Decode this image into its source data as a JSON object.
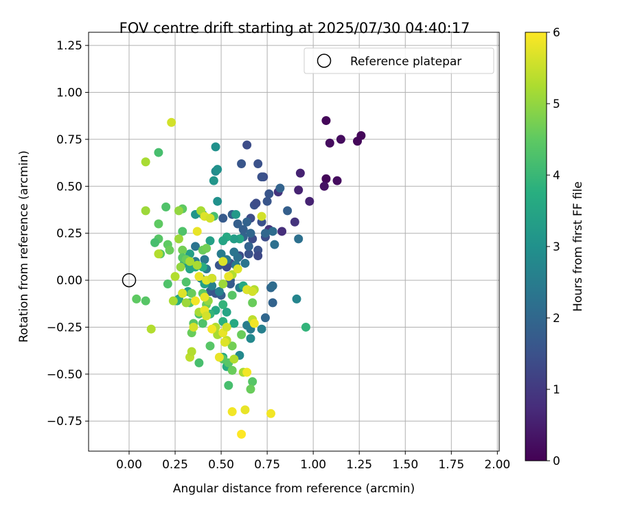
{
  "chart_data": {
    "type": "scatter",
    "title": "FOV centre drift starting at 2025/07/30 04:40:17",
    "xlabel": "Angular distance from reference (arcmin)",
    "ylabel": "Rotation from reference (arcmin)",
    "xlim": [
      -0.22,
      2.01
    ],
    "ylim": [
      -0.91,
      1.32
    ],
    "xticks": [
      "0.00",
      "0.25",
      "0.50",
      "0.75",
      "1.00",
      "1.25",
      "1.50",
      "1.75",
      "2.00"
    ],
    "yticks": [
      "−0.75",
      "−0.50",
      "−0.25",
      "0.00",
      "0.25",
      "0.50",
      "0.75",
      "1.00",
      "1.25"
    ],
    "grid": true,
    "legend": {
      "location": "top-right",
      "label": "Reference platepar"
    },
    "reference_point": [
      0.0,
      0.0
    ],
    "colorbar": {
      "label": "Hours from first FF file",
      "range": [
        0,
        6
      ],
      "ticks": [
        "0",
        "1",
        "2",
        "3",
        "4",
        "5",
        "6"
      ],
      "colormap": "viridis"
    },
    "points": [
      {
        "x": 1.07,
        "y": 0.85,
        "t": 0.1
      },
      {
        "x": 1.26,
        "y": 0.77,
        "t": 0.1
      },
      {
        "x": 1.24,
        "y": 0.74,
        "t": 0.1
      },
      {
        "x": 1.15,
        "y": 0.75,
        "t": 0.2
      },
      {
        "x": 1.09,
        "y": 0.73,
        "t": 0.2
      },
      {
        "x": 1.07,
        "y": 0.54,
        "t": 0.1
      },
      {
        "x": 1.13,
        "y": 0.53,
        "t": 0.2
      },
      {
        "x": 1.06,
        "y": 0.5,
        "t": 0.3
      },
      {
        "x": 0.93,
        "y": 0.57,
        "t": 0.6
      },
      {
        "x": 0.92,
        "y": 0.48,
        "t": 0.6
      },
      {
        "x": 0.98,
        "y": 0.42,
        "t": 0.6
      },
      {
        "x": 0.81,
        "y": 0.47,
        "t": 0.9
      },
      {
        "x": 0.9,
        "y": 0.31,
        "t": 0.9
      },
      {
        "x": 0.83,
        "y": 0.26,
        "t": 0.8
      },
      {
        "x": 0.76,
        "y": 0.27,
        "t": 0.9
      },
      {
        "x": 0.64,
        "y": 0.72,
        "t": 1.4
      },
      {
        "x": 0.7,
        "y": 0.62,
        "t": 1.5
      },
      {
        "x": 0.61,
        "y": 0.62,
        "t": 1.6
      },
      {
        "x": 0.73,
        "y": 0.55,
        "t": 1.4
      },
      {
        "x": 0.72,
        "y": 0.55,
        "t": 1.5
      },
      {
        "x": 0.76,
        "y": 0.46,
        "t": 1.6
      },
      {
        "x": 0.82,
        "y": 0.49,
        "t": 1.9
      },
      {
        "x": 0.68,
        "y": 0.4,
        "t": 1.5
      },
      {
        "x": 0.75,
        "y": 0.42,
        "t": 1.6
      },
      {
        "x": 0.86,
        "y": 0.37,
        "t": 1.8
      },
      {
        "x": 0.69,
        "y": 0.41,
        "t": 1.4
      },
      {
        "x": 0.66,
        "y": 0.33,
        "t": 1.4
      },
      {
        "x": 0.72,
        "y": 0.31,
        "t": 1.5
      },
      {
        "x": 0.74,
        "y": 0.23,
        "t": 1.4
      },
      {
        "x": 0.67,
        "y": 0.22,
        "t": 1.4
      },
      {
        "x": 0.7,
        "y": 0.16,
        "t": 1.5
      },
      {
        "x": 0.65,
        "y": 0.14,
        "t": 1.5
      },
      {
        "x": 0.7,
        "y": 0.13,
        "t": 1.3
      },
      {
        "x": 0.6,
        "y": 0.13,
        "t": 1.4
      },
      {
        "x": 0.56,
        "y": 0.35,
        "t": 1.8
      },
      {
        "x": 0.59,
        "y": 0.3,
        "t": 1.8
      },
      {
        "x": 0.62,
        "y": 0.27,
        "t": 1.8
      },
      {
        "x": 0.64,
        "y": 0.31,
        "t": 1.9
      },
      {
        "x": 0.51,
        "y": 0.33,
        "t": 1.7
      },
      {
        "x": 0.66,
        "y": 0.25,
        "t": 2.0
      },
      {
        "x": 0.62,
        "y": 0.23,
        "t": 1.9
      },
      {
        "x": 0.65,
        "y": 0.18,
        "t": 1.9
      },
      {
        "x": 0.74,
        "y": 0.25,
        "t": 2.0
      },
      {
        "x": 0.79,
        "y": 0.19,
        "t": 2.2
      },
      {
        "x": 0.92,
        "y": 0.22,
        "t": 2.2
      },
      {
        "x": 0.78,
        "y": 0.26,
        "t": 2.1
      },
      {
        "x": 0.55,
        "y": 0.09,
        "t": 1.5
      },
      {
        "x": 0.53,
        "y": 0.07,
        "t": 1.4
      },
      {
        "x": 0.49,
        "y": 0.08,
        "t": 1.6
      },
      {
        "x": 0.55,
        "y": 0.0,
        "t": 1.7
      },
      {
        "x": 0.45,
        "y": 0.01,
        "t": 1.6
      },
      {
        "x": 0.44,
        "y": -0.06,
        "t": 1.7
      },
      {
        "x": 0.47,
        "y": -0.07,
        "t": 1.6
      },
      {
        "x": 0.5,
        "y": -0.08,
        "t": 1.8
      },
      {
        "x": 0.55,
        "y": -0.02,
        "t": 1.7
      },
      {
        "x": 0.59,
        "y": 0.12,
        "t": 2.2
      },
      {
        "x": 0.57,
        "y": 0.15,
        "t": 2.3
      },
      {
        "x": 0.63,
        "y": 0.09,
        "t": 2.3
      },
      {
        "x": 0.53,
        "y": 0.11,
        "t": 2.4
      },
      {
        "x": 0.58,
        "y": 0.08,
        "t": 2.4
      },
      {
        "x": 0.36,
        "y": 0.18,
        "t": 2.3
      },
      {
        "x": 0.36,
        "y": 0.1,
        "t": 2.5
      },
      {
        "x": 0.41,
        "y": 0.11,
        "t": 2.4
      },
      {
        "x": 0.42,
        "y": 0.06,
        "t": 2.5
      },
      {
        "x": 0.5,
        "y": 0.14,
        "t": 2.5
      },
      {
        "x": 0.39,
        "y": 0.01,
        "t": 2.7
      },
      {
        "x": 0.45,
        "y": -0.03,
        "t": 2.6
      },
      {
        "x": 0.6,
        "y": -0.04,
        "t": 2.5
      },
      {
        "x": 0.64,
        "y": -0.05,
        "t": 2.5
      },
      {
        "x": 0.49,
        "y": -0.06,
        "t": 2.6
      },
      {
        "x": 0.77,
        "y": -0.04,
        "t": 2.0
      },
      {
        "x": 0.78,
        "y": -0.03,
        "t": 2.1
      },
      {
        "x": 0.78,
        "y": -0.12,
        "t": 1.9
      },
      {
        "x": 0.74,
        "y": -0.2,
        "t": 2.0
      },
      {
        "x": 0.72,
        "y": -0.26,
        "t": 2.6
      },
      {
        "x": 0.66,
        "y": -0.26,
        "t": 2.5
      },
      {
        "x": 0.64,
        "y": -0.24,
        "t": 2.5
      },
      {
        "x": 0.66,
        "y": -0.31,
        "t": 2.8
      },
      {
        "x": 0.6,
        "y": -0.4,
        "t": 2.8
      },
      {
        "x": 0.91,
        "y": -0.1,
        "t": 2.7
      },
      {
        "x": 0.47,
        "y": 0.71,
        "t": 3.0
      },
      {
        "x": 0.47,
        "y": 0.58,
        "t": 2.8
      },
      {
        "x": 0.48,
        "y": 0.59,
        "t": 3.0
      },
      {
        "x": 0.46,
        "y": 0.53,
        "t": 3.1
      },
      {
        "x": 0.48,
        "y": 0.42,
        "t": 3.0
      },
      {
        "x": 0.58,
        "y": 0.35,
        "t": 3.2
      },
      {
        "x": 0.36,
        "y": 0.35,
        "t": 3.1
      },
      {
        "x": 0.4,
        "y": 0.35,
        "t": 3.3
      },
      {
        "x": 0.6,
        "y": 0.22,
        "t": 3.5
      },
      {
        "x": 0.57,
        "y": 0.22,
        "t": 3.3
      },
      {
        "x": 0.53,
        "y": 0.23,
        "t": 3.6
      },
      {
        "x": 0.51,
        "y": 0.21,
        "t": 3.5
      },
      {
        "x": 0.44,
        "y": 0.21,
        "t": 3.4
      },
      {
        "x": 0.33,
        "y": 0.14,
        "t": 3.4
      },
      {
        "x": 0.3,
        "y": 0.09,
        "t": 3.3
      },
      {
        "x": 0.36,
        "y": 0.07,
        "t": 3.6
      },
      {
        "x": 0.4,
        "y": 0.07,
        "t": 3.7
      },
      {
        "x": 0.33,
        "y": 0.06,
        "t": 3.5
      },
      {
        "x": 0.41,
        "y": -0.02,
        "t": 3.4
      },
      {
        "x": 0.32,
        "y": -0.06,
        "t": 3.4
      },
      {
        "x": 0.29,
        "y": -0.07,
        "t": 3.6
      },
      {
        "x": 0.27,
        "y": -0.1,
        "t": 3.5
      },
      {
        "x": 0.26,
        "y": -0.11,
        "t": 3.7
      },
      {
        "x": 0.47,
        "y": -0.16,
        "t": 3.6
      },
      {
        "x": 0.51,
        "y": -0.22,
        "t": 3.8
      },
      {
        "x": 0.57,
        "y": -0.23,
        "t": 3.6
      },
      {
        "x": 0.53,
        "y": -0.17,
        "t": 3.5
      },
      {
        "x": 0.44,
        "y": -0.18,
        "t": 3.9
      },
      {
        "x": 0.51,
        "y": -0.41,
        "t": 3.6
      },
      {
        "x": 0.53,
        "y": -0.46,
        "t": 3.7
      },
      {
        "x": 0.62,
        "y": -0.03,
        "t": 3.6
      },
      {
        "x": 0.96,
        "y": -0.25,
        "t": 3.9
      },
      {
        "x": 0.51,
        "y": -0.13,
        "t": 3.9
      },
      {
        "x": 0.16,
        "y": 0.68,
        "t": 4.2
      },
      {
        "x": 0.2,
        "y": 0.39,
        "t": 4.3
      },
      {
        "x": 0.29,
        "y": 0.38,
        "t": 4.5
      },
      {
        "x": 0.46,
        "y": 0.34,
        "t": 4.2
      },
      {
        "x": 0.16,
        "y": 0.3,
        "t": 4.5
      },
      {
        "x": 0.29,
        "y": 0.26,
        "t": 4.3
      },
      {
        "x": 0.16,
        "y": 0.22,
        "t": 4.4
      },
      {
        "x": 0.14,
        "y": 0.2,
        "t": 4.2
      },
      {
        "x": 0.21,
        "y": 0.19,
        "t": 4.5
      },
      {
        "x": 0.22,
        "y": 0.16,
        "t": 4.6
      },
      {
        "x": 0.29,
        "y": 0.16,
        "t": 4.7
      },
      {
        "x": 0.29,
        "y": 0.12,
        "t": 4.4
      },
      {
        "x": 0.17,
        "y": 0.14,
        "t": 4.4
      },
      {
        "x": 0.31,
        "y": 0.11,
        "t": 4.6
      },
      {
        "x": 0.4,
        "y": 0.16,
        "t": 4.6
      },
      {
        "x": 0.42,
        "y": 0.17,
        "t": 4.7
      },
      {
        "x": 0.21,
        "y": -0.02,
        "t": 4.3
      },
      {
        "x": 0.31,
        "y": -0.01,
        "t": 4.3
      },
      {
        "x": 0.34,
        "y": -0.07,
        "t": 4.6
      },
      {
        "x": 0.4,
        "y": -0.07,
        "t": 4.5
      },
      {
        "x": 0.42,
        "y": -0.13,
        "t": 4.6
      },
      {
        "x": 0.33,
        "y": -0.12,
        "t": 4.3
      },
      {
        "x": 0.56,
        "y": -0.08,
        "t": 4.4
      },
      {
        "x": 0.38,
        "y": -0.18,
        "t": 4.2
      },
      {
        "x": 0.35,
        "y": -0.23,
        "t": 4.4
      },
      {
        "x": 0.34,
        "y": -0.28,
        "t": 4.6
      },
      {
        "x": 0.4,
        "y": -0.23,
        "t": 4.3
      },
      {
        "x": 0.44,
        "y": -0.35,
        "t": 4.4
      },
      {
        "x": 0.38,
        "y": -0.44,
        "t": 4.2
      },
      {
        "x": 0.51,
        "y": -0.42,
        "t": 4.4
      },
      {
        "x": 0.54,
        "y": -0.44,
        "t": 4.4
      },
      {
        "x": 0.54,
        "y": -0.56,
        "t": 4.2
      },
      {
        "x": 0.61,
        "y": -0.29,
        "t": 4.6
      },
      {
        "x": 0.56,
        "y": -0.35,
        "t": 4.7
      },
      {
        "x": 0.56,
        "y": -0.48,
        "t": 4.6
      },
      {
        "x": 0.67,
        "y": -0.54,
        "t": 4.4
      },
      {
        "x": 0.66,
        "y": -0.58,
        "t": 4.6
      },
      {
        "x": 0.67,
        "y": -0.12,
        "t": 4.6
      },
      {
        "x": 0.04,
        "y": -0.1,
        "t": 4.5
      },
      {
        "x": 0.09,
        "y": -0.11,
        "t": 4.4
      },
      {
        "x": 0.09,
        "y": 0.63,
        "t": 5.2
      },
      {
        "x": 0.09,
        "y": 0.37,
        "t": 5.1
      },
      {
        "x": 0.27,
        "y": 0.37,
        "t": 5.0
      },
      {
        "x": 0.39,
        "y": 0.37,
        "t": 5.2
      },
      {
        "x": 0.27,
        "y": 0.22,
        "t": 5.1
      },
      {
        "x": 0.16,
        "y": 0.14,
        "t": 5.3
      },
      {
        "x": 0.33,
        "y": 0.1,
        "t": 5.2
      },
      {
        "x": 0.28,
        "y": 0.07,
        "t": 5.0
      },
      {
        "x": 0.25,
        "y": 0.02,
        "t": 5.3
      },
      {
        "x": 0.37,
        "y": 0.08,
        "t": 5.2
      },
      {
        "x": 0.24,
        "y": -0.11,
        "t": 5.2
      },
      {
        "x": 0.31,
        "y": -0.12,
        "t": 5.1
      },
      {
        "x": 0.38,
        "y": -0.17,
        "t": 5.2
      },
      {
        "x": 0.33,
        "y": -0.41,
        "t": 5.4
      },
      {
        "x": 0.34,
        "y": -0.38,
        "t": 5.3
      },
      {
        "x": 0.12,
        "y": -0.26,
        "t": 5.3
      },
      {
        "x": 0.43,
        "y": -0.11,
        "t": 5.0
      },
      {
        "x": 0.47,
        "y": -0.25,
        "t": 5.3
      },
      {
        "x": 0.48,
        "y": -0.29,
        "t": 5.2
      },
      {
        "x": 0.53,
        "y": -0.32,
        "t": 5.4
      },
      {
        "x": 0.51,
        "y": -0.02,
        "t": 5.1
      },
      {
        "x": 0.56,
        "y": 0.03,
        "t": 5.3
      },
      {
        "x": 0.57,
        "y": -0.42,
        "t": 5.3
      },
      {
        "x": 0.62,
        "y": -0.49,
        "t": 5.2
      },
      {
        "x": 0.68,
        "y": -0.05,
        "t": 5.3
      },
      {
        "x": 0.67,
        "y": -0.21,
        "t": 5.4
      },
      {
        "x": 0.23,
        "y": 0.84,
        "t": 5.6
      },
      {
        "x": 0.41,
        "y": 0.34,
        "t": 5.7
      },
      {
        "x": 0.37,
        "y": 0.26,
        "t": 5.8
      },
      {
        "x": 0.44,
        "y": 0.33,
        "t": 5.6
      },
      {
        "x": 0.72,
        "y": 0.34,
        "t": 5.6
      },
      {
        "x": 0.51,
        "y": 0.1,
        "t": 5.7
      },
      {
        "x": 0.59,
        "y": 0.06,
        "t": 5.7
      },
      {
        "x": 0.38,
        "y": 0.02,
        "t": 5.8
      },
      {
        "x": 0.42,
        "y": 0.0,
        "t": 5.7
      },
      {
        "x": 0.45,
        "y": 0.01,
        "t": 5.6
      },
      {
        "x": 0.54,
        "y": 0.02,
        "t": 5.8
      },
      {
        "x": 0.29,
        "y": -0.07,
        "t": 5.7
      },
      {
        "x": 0.36,
        "y": -0.11,
        "t": 5.9
      },
      {
        "x": 0.41,
        "y": -0.09,
        "t": 5.8
      },
      {
        "x": 0.41,
        "y": -0.16,
        "t": 5.8
      },
      {
        "x": 0.42,
        "y": -0.19,
        "t": 5.6
      },
      {
        "x": 0.35,
        "y": -0.25,
        "t": 5.6
      },
      {
        "x": 0.45,
        "y": -0.26,
        "t": 5.9
      },
      {
        "x": 0.51,
        "y": -0.28,
        "t": 5.8
      },
      {
        "x": 0.53,
        "y": -0.25,
        "t": 5.6
      },
      {
        "x": 0.52,
        "y": -0.33,
        "t": 5.7
      },
      {
        "x": 0.49,
        "y": -0.41,
        "t": 5.8
      },
      {
        "x": 0.64,
        "y": -0.05,
        "t": 5.7
      },
      {
        "x": 0.67,
        "y": -0.06,
        "t": 5.6
      },
      {
        "x": 0.68,
        "y": -0.23,
        "t": 5.9
      },
      {
        "x": 0.64,
        "y": -0.49,
        "t": 5.9
      },
      {
        "x": 0.56,
        "y": -0.7,
        "t": 5.9
      },
      {
        "x": 0.63,
        "y": -0.69,
        "t": 5.8
      },
      {
        "x": 0.77,
        "y": -0.71,
        "t": 5.9
      },
      {
        "x": 0.61,
        "y": -0.82,
        "t": 6.0
      }
    ]
  }
}
